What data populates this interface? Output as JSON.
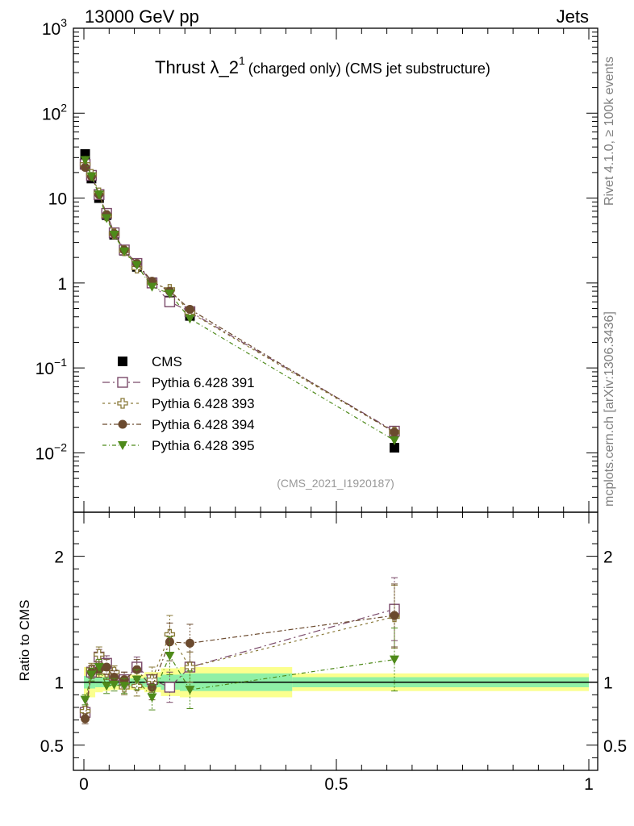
{
  "header": {
    "energy_label": "13000 GeV pp",
    "process_label": "Jets"
  },
  "side_labels": {
    "rivet": "Rivet 4.1.0, ≥ 100k events",
    "mcplots": "mcplots.cern.ch [arXiv:1306.3436]"
  },
  "chart_data": {
    "type": "scatter",
    "title": "Thrust λ_2¹",
    "title_main": "Thrust λ_2",
    "title_sup": "1",
    "title_suffix": "(charged only) (CMS jet substructure)",
    "analysis_id": "(CMS_2021_I1920187)",
    "x": [
      0.0025,
      0.015,
      0.03,
      0.045,
      0.06,
      0.08,
      0.105,
      0.135,
      0.17,
      0.21,
      0.615
    ],
    "xlim": [
      0,
      1
    ],
    "x_tick_labels": [
      "0",
      "0.5",
      "1"
    ],
    "main_panel": {
      "yscale": "log",
      "ylim": [
        0.002,
        1000
      ],
      "y_tick_labels": [
        "10^-2",
        "10^-1",
        "1",
        "10",
        "10^2",
        "10^3"
      ],
      "series": [
        {
          "name": "CMS",
          "marker": "filled-square",
          "color": "#000000",
          "values": [
            33,
            17,
            10,
            6.3,
            3.7,
            2.4,
            1.55,
            1.02,
            0.62,
            0.41,
            0.0115
          ]
        },
        {
          "name": "Pythia 6.428 391",
          "marker": "open-square",
          "color": "#7a4a6a",
          "values": [
            25,
            18.5,
            11,
            6.6,
            3.9,
            2.45,
            1.7,
            1.0,
            0.6,
            0.46,
            0.018
          ]
        },
        {
          "name": "Pythia 6.428 393",
          "marker": "open-cross",
          "color": "#8a7a3a",
          "values": [
            25,
            19,
            11.5,
            6.2,
            3.8,
            2.4,
            1.5,
            1.0,
            0.84,
            0.45,
            0.0175
          ]
        },
        {
          "name": "Pythia 6.428 394",
          "marker": "filled-circle",
          "color": "#6b4a2e",
          "values": [
            23,
            18,
            11,
            6.4,
            3.8,
            2.45,
            1.7,
            1.05,
            0.8,
            0.49,
            0.0175
          ]
        },
        {
          "name": "Pythia 6.428 395",
          "marker": "filled-triangle-down",
          "color": "#4e8a1a",
          "values": [
            28,
            18,
            11,
            5.8,
            3.7,
            2.35,
            1.62,
            0.9,
            0.75,
            0.38,
            0.014
          ]
        }
      ]
    },
    "ratio_panel": {
      "ylabel": "Ratio to CMS",
      "ylim": [
        0.3,
        2.35
      ],
      "y_tick_labels": [
        "0.5",
        "1",
        "2"
      ],
      "band_inner_halfwidth": [
        0.05,
        0.05,
        0.04,
        0.04,
        0.03,
        0.03,
        0.03,
        0.04,
        0.06,
        0.07,
        0.04
      ],
      "band_outer_halfwidth": [
        0.12,
        0.12,
        0.08,
        0.07,
        0.06,
        0.06,
        0.06,
        0.08,
        0.11,
        0.12,
        0.07
      ],
      "series": [
        {
          "name": "Pythia 6.428 391",
          "values": [
            0.76,
            1.08,
            1.2,
            1.15,
            1.05,
            1.02,
            1.12,
            1.02,
            0.96,
            1.12,
            1.58
          ],
          "errors": [
            0.04,
            0.05,
            0.06,
            0.06,
            0.05,
            0.06,
            0.08,
            0.1,
            0.12,
            0.12,
            0.25
          ]
        },
        {
          "name": "Pythia 6.428 393",
          "values": [
            0.77,
            1.1,
            1.22,
            1.08,
            1.08,
            0.96,
            0.97,
            1.02,
            1.38,
            1.12,
            1.52
          ],
          "errors": [
            0.04,
            0.05,
            0.06,
            0.06,
            0.05,
            0.06,
            0.08,
            0.1,
            0.15,
            0.12,
            0.25
          ]
        },
        {
          "name": "Pythia 6.428 394",
          "values": [
            0.71,
            1.08,
            1.1,
            1.12,
            1.04,
            1.02,
            1.1,
            0.96,
            1.32,
            1.31,
            1.53
          ],
          "errors": [
            0.04,
            0.05,
            0.06,
            0.06,
            0.05,
            0.06,
            0.08,
            0.1,
            0.15,
            0.15,
            0.25
          ]
        },
        {
          "name": "Pythia 6.428 395",
          "values": [
            0.86,
            1.06,
            1.12,
            0.97,
            0.98,
            0.97,
            1.02,
            0.88,
            1.21,
            0.94,
            1.18
          ],
          "errors": [
            0.04,
            0.05,
            0.06,
            0.06,
            0.05,
            0.06,
            0.08,
            0.1,
            0.15,
            0.15,
            0.25
          ]
        }
      ]
    }
  }
}
